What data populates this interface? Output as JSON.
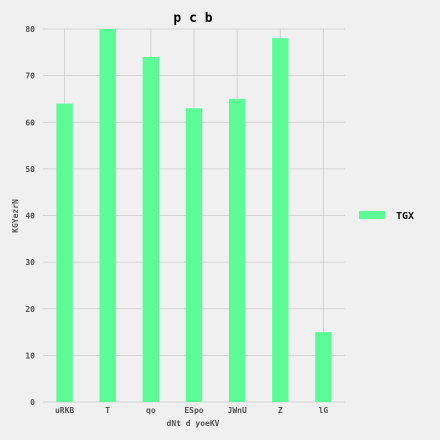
{
  "chart_data": {
    "type": "bar",
    "title": "p c b",
    "xlabel": "dNt d yoeKV",
    "ylabel": "KGYezrN",
    "categories": [
      "uRKB",
      "T",
      "qo",
      "ESpo",
      "JWnU",
      "Z",
      "lG"
    ],
    "series": [
      {
        "name": "TGX",
        "values": [
          64,
          80,
          74,
          63,
          65,
          78,
          15
        ],
        "color": "#5cfb96"
      }
    ],
    "ylim": [
      0,
      80
    ],
    "yticks": [
      0,
      10,
      20,
      30,
      40,
      50,
      60,
      70,
      80
    ],
    "grid": true,
    "legend_position": "right",
    "background": "#f0f0f0"
  }
}
